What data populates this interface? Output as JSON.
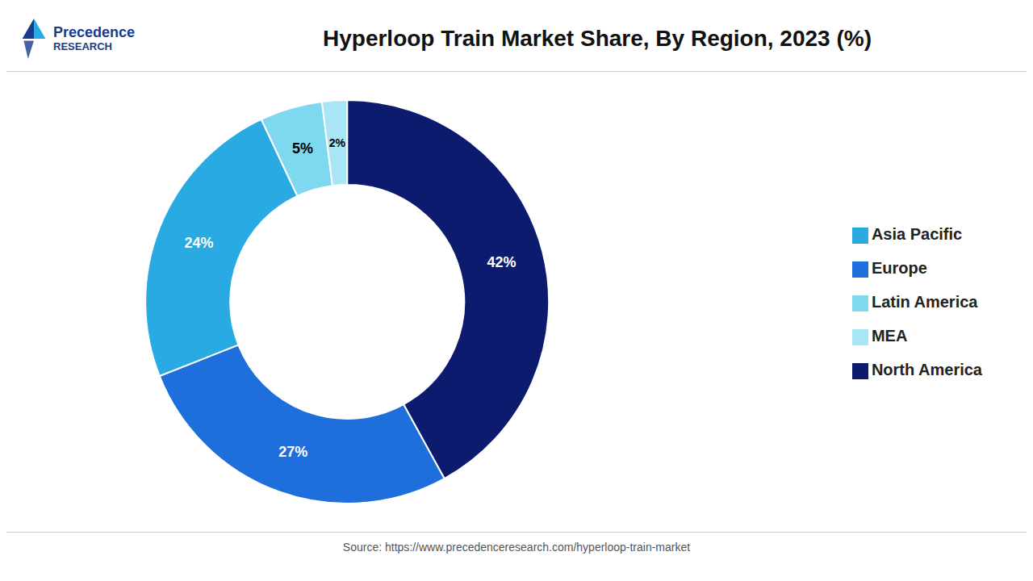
{
  "chart_data": {
    "type": "pie",
    "title": "Hyperloop Train Market Share, By Region, 2023 (%)",
    "categories": [
      "North America",
      "Europe",
      "Asia Pacific",
      "Latin America",
      "MEA"
    ],
    "values": [
      42,
      27,
      24,
      5,
      2
    ],
    "value_labels": [
      "42%",
      "27%",
      "24%",
      "5%",
      "2%"
    ],
    "colors": [
      "#0d1b6e",
      "#1e6fdc",
      "#29aae2",
      "#7dd8f0",
      "#a8e6f5"
    ],
    "data_labels": true,
    "legend": "right",
    "annotations": [
      "Precedence",
      "RESEARCH",
      "Source: https://www.precedenceresearch.com/hyperloop-train-market"
    ]
  }
}
